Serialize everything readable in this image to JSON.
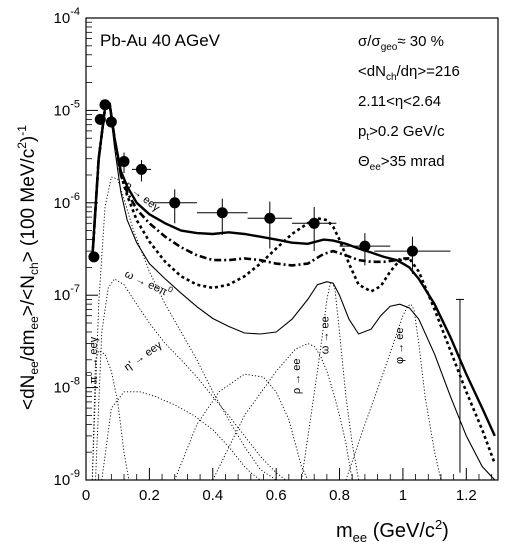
{
  "chart_data": {
    "type": "line",
    "title": "",
    "header_text": "Pb-Au 40 AGeV",
    "info_lines": [
      {
        "base": "σ/σ",
        "sub": "geo",
        "rest": "≈ 30 %"
      },
      {
        "base": "<dN",
        "sub": "ch",
        "rest": "/dη>=216"
      },
      {
        "base": "2.11<η<2.64",
        "sub": "",
        "rest": ""
      },
      {
        "base": "p",
        "sub": "t",
        "rest": ">0.2 GeV/c"
      },
      {
        "base": "Θ",
        "sub": "ee",
        "rest": ">35 mrad"
      }
    ],
    "xlabel": {
      "base": "m",
      "sub": "ee",
      "rest": " (GeV/c",
      "sup": "2",
      "tail": ")"
    },
    "ylabel": "<dN_ee/dm_ee>/<N_ch> (100 MeV/c^2)^-1",
    "xlim": [
      0,
      1.3
    ],
    "ylim": [
      1e-09,
      0.0001
    ],
    "yscale": "log",
    "x_ticks": [
      0,
      0.2,
      0.4,
      0.6,
      0.8,
      1,
      1.2
    ],
    "x_tick_labels": [
      "0",
      "0.2",
      "0.4",
      "0.6",
      "0.8",
      "1",
      "1.2"
    ],
    "y_ticks": [
      1e-09,
      1e-08,
      1e-07,
      1e-06,
      1e-05,
      0.0001
    ],
    "y_tick_labels": [
      {
        "base": "10",
        "exp": "-9"
      },
      {
        "base": "10",
        "exp": "-8"
      },
      {
        "base": "10",
        "exp": "-7"
      },
      {
        "base": "10",
        "exp": "-6"
      },
      {
        "base": "10",
        "exp": "-5"
      },
      {
        "base": "10",
        "exp": "-4"
      }
    ],
    "data_points": [
      {
        "x": 0.025,
        "y": 2.6e-07,
        "xerr": 0.0,
        "yerr_lo": 3e-08,
        "yerr_hi": 3e-08
      },
      {
        "x": 0.045,
        "y": 8e-06,
        "xerr": 0.0,
        "yerr_lo": 1e-06,
        "yerr_hi": 1e-06
      },
      {
        "x": 0.06,
        "y": 1.15e-05,
        "xerr": 0.0,
        "yerr_lo": 1e-06,
        "yerr_hi": 1e-06
      },
      {
        "x": 0.08,
        "y": 7.5e-06,
        "xerr": 0.0,
        "yerr_lo": 1e-06,
        "yerr_hi": 1e-06
      },
      {
        "x": 0.12,
        "y": 2.8e-06,
        "xerr": 0.0,
        "yerr_lo": 7e-07,
        "yerr_hi": 7e-07
      },
      {
        "x": 0.175,
        "y": 2.3e-06,
        "xerr": 0.03,
        "yerr_lo": 6e-07,
        "yerr_hi": 6e-07
      },
      {
        "x": 0.28,
        "y": 1e-06,
        "xerr": 0.07,
        "yerr_lo": 4e-07,
        "yerr_hi": 4e-07
      },
      {
        "x": 0.43,
        "y": 7.8e-07,
        "xerr": 0.08,
        "yerr_lo": 3.3e-07,
        "yerr_hi": 3.3e-07
      },
      {
        "x": 0.58,
        "y": 6.8e-07,
        "xerr": 0.07,
        "yerr_lo": 3.6e-07,
        "yerr_hi": 3.5e-07
      },
      {
        "x": 0.72,
        "y": 6e-07,
        "xerr": 0.07,
        "yerr_lo": 3e-07,
        "yerr_hi": 3e-07
      },
      {
        "x": 0.88,
        "y": 3.4e-07,
        "xerr": 0.08,
        "yerr_lo": 1.3e-07,
        "yerr_hi": 1.3e-07
      },
      {
        "x": 1.03,
        "y": 3e-07,
        "xerr": 0.12,
        "yerr_lo": 1.3e-07,
        "yerr_hi": 1.3e-07
      }
    ],
    "upper_error_bar": {
      "x": 1.18,
      "y_lo": 1.2e-09,
      "y_hi": 9e-08
    },
    "series": [
      {
        "style": "solid-thick",
        "x": [
          0.02,
          0.04,
          0.06,
          0.075,
          0.09,
          0.11,
          0.13,
          0.16,
          0.2,
          0.25,
          0.3,
          0.35,
          0.4,
          0.45,
          0.5,
          0.55,
          0.6,
          0.65,
          0.7,
          0.75,
          0.78,
          0.82,
          0.86,
          0.9,
          0.94,
          0.98,
          1.0,
          1.02,
          1.05,
          1.1,
          1.15,
          1.2,
          1.25,
          1.29
        ],
        "y": [
          2.5e-07,
          3e-06,
          1.05e-05,
          1.15e-05,
          5e-06,
          2.2e-06,
          1.5e-06,
          1e-06,
          7.5e-07,
          6e-07,
          5e-07,
          4.7e-07,
          4.6e-07,
          4.8e-07,
          4.6e-07,
          4.3e-07,
          4e-07,
          3.7e-07,
          3.6e-07,
          4e-07,
          3.9e-07,
          3.6e-07,
          3.2e-07,
          2.9e-07,
          2.6e-07,
          2.4e-07,
          2.2e-07,
          2e-07,
          1.5e-07,
          8e-08,
          3.5e-08,
          1.4e-08,
          6e-09,
          3e-09
        ]
      },
      {
        "style": "dash-dot",
        "x": [
          0.02,
          0.04,
          0.06,
          0.075,
          0.09,
          0.11,
          0.13,
          0.16,
          0.2,
          0.25,
          0.3,
          0.35,
          0.4,
          0.45,
          0.5,
          0.55,
          0.6,
          0.65,
          0.7,
          0.75,
          0.78,
          0.82,
          0.86,
          0.9,
          0.94,
          0.98,
          1.0,
          1.02
        ],
        "y": [
          2.5e-07,
          3e-06,
          1.05e-05,
          1.15e-05,
          5e-06,
          2e-06,
          1.3e-06,
          8.5e-07,
          6e-07,
          4.3e-07,
          3.3e-07,
          2.7e-07,
          2.4e-07,
          2.4e-07,
          2.5e-07,
          2.4e-07,
          2.2e-07,
          2.1e-07,
          2.2e-07,
          2.8e-07,
          3e-07,
          2.7e-07,
          2.4e-07,
          2.3e-07,
          2.3e-07,
          2.4e-07,
          2.5e-07,
          2.5e-07
        ]
      },
      {
        "style": "dotted-thick",
        "x": [
          0.02,
          0.04,
          0.06,
          0.075,
          0.09,
          0.11,
          0.13,
          0.16,
          0.2,
          0.25,
          0.3,
          0.35,
          0.4,
          0.45,
          0.5,
          0.55,
          0.6,
          0.65,
          0.7,
          0.73,
          0.76,
          0.78,
          0.8,
          0.83,
          0.86,
          0.9,
          0.93,
          0.96,
          0.99,
          1.02,
          1.05,
          1.1,
          1.15,
          1.2,
          1.25,
          1.29
        ],
        "y": [
          2.5e-07,
          3e-06,
          1.05e-05,
          1.15e-05,
          5e-06,
          2e-06,
          1.2e-06,
          6.5e-07,
          3.8e-07,
          2.3e-07,
          1.6e-07,
          1.3e-07,
          1.2e-07,
          1.3e-07,
          1.6e-07,
          2.2e-07,
          3.2e-07,
          4.6e-07,
          6e-07,
          6.8e-07,
          6.5e-07,
          5.5e-07,
          4e-07,
          2.2e-07,
          1.3e-07,
          1.1e-07,
          1.25e-07,
          1.8e-07,
          2.4e-07,
          2.5e-07,
          1.8e-07,
          7e-08,
          2.5e-08,
          9e-09,
          3.5e-09,
          1.5e-09
        ]
      },
      {
        "style": "solid-thin",
        "x": [
          0.02,
          0.04,
          0.06,
          0.075,
          0.09,
          0.11,
          0.13,
          0.16,
          0.2,
          0.25,
          0.3,
          0.35,
          0.4,
          0.45,
          0.5,
          0.55,
          0.6,
          0.65,
          0.7,
          0.73,
          0.76,
          0.78,
          0.8,
          0.83,
          0.86,
          0.9,
          0.93,
          0.96,
          0.99,
          1.02,
          1.05,
          1.1,
          1.15,
          1.2,
          1.25,
          1.29
        ],
        "y": [
          2.5e-07,
          3e-06,
          1.05e-05,
          1.15e-05,
          4e-06,
          1.3e-06,
          6.5e-07,
          3.7e-07,
          2.2e-07,
          1.5e-07,
          1.05e-07,
          7.5e-08,
          5.6e-08,
          4.6e-08,
          3.9e-08,
          3.8e-08,
          4e-08,
          5.5e-08,
          9e-08,
          1.3e-07,
          1.4e-07,
          1.35e-07,
          1e-07,
          5.5e-08,
          3.8e-08,
          4.3e-08,
          6e-08,
          7.6e-08,
          8e-08,
          7.3e-08,
          5.5e-08,
          2.3e-08,
          8e-09,
          3e-09,
          1.4e-09,
          1e-09
        ]
      },
      {
        "style": "dotted-thin",
        "x": [
          0.02,
          0.04,
          0.06,
          0.08,
          0.1,
          0.12,
          0.15,
          0.2,
          0.25,
          0.3,
          0.35,
          0.4,
          0.45,
          0.5,
          0.55,
          0.6
        ],
        "y": [
          1e-09,
          8e-08,
          9e-07,
          1.9e-06,
          1.8e-06,
          1.1e-06,
          5e-07,
          1.8e-07,
          8e-08,
          4e-08,
          2e-08,
          9e-09,
          4.5e-09,
          2.3e-09,
          1.3e-09,
          1e-09
        ]
      },
      {
        "style": "dotted-thin",
        "x": [
          0.03,
          0.05,
          0.07,
          0.09,
          0.12,
          0.16,
          0.2,
          0.25,
          0.3,
          0.35,
          0.4,
          0.45,
          0.5,
          0.55,
          0.6,
          0.63
        ],
        "y": [
          1e-09,
          4e-08,
          1.2e-07,
          1.5e-07,
          1.3e-07,
          8e-08,
          5e-08,
          3e-08,
          2e-08,
          1.3e-08,
          8e-09,
          5e-09,
          3e-09,
          1.8e-09,
          1.2e-09,
          1e-09
        ]
      },
      {
        "style": "dotted-thin",
        "x": [
          0.02,
          0.03,
          0.04,
          0.06,
          0.08,
          0.1,
          0.12,
          0.135
        ],
        "y": [
          1e-09,
          2e-08,
          2.5e-08,
          2.3e-08,
          1.5e-08,
          7e-09,
          2e-09,
          1e-09
        ]
      },
      {
        "style": "dotted-thin",
        "x": [
          0.05,
          0.08,
          0.12,
          0.17,
          0.22,
          0.28,
          0.34,
          0.4,
          0.45,
          0.5,
          0.52,
          0.55
        ],
        "y": [
          1e-09,
          6e-09,
          9e-09,
          9e-09,
          8e-09,
          6.5e-09,
          5e-09,
          3.5e-09,
          2.3e-09,
          1.4e-09,
          1.2e-09,
          1e-09
        ]
      },
      {
        "style": "dotted-thin",
        "x": [
          0.28,
          0.35,
          0.42,
          0.5,
          0.56,
          0.6,
          0.64,
          0.66,
          0.68,
          0.7
        ],
        "y": [
          1e-09,
          4e-09,
          9e-09,
          1.4e-08,
          1.3e-08,
          9e-09,
          4.5e-09,
          2.5e-09,
          1.4e-09,
          1e-09
        ]
      },
      {
        "style": "dotted-thin",
        "x": [
          0.4,
          0.5,
          0.6,
          0.66,
          0.7,
          0.72,
          0.74,
          0.76,
          0.78,
          0.8,
          0.82,
          0.84
        ],
        "y": [
          1e-09,
          5e-09,
          1.5e-08,
          2.6e-08,
          3e-08,
          2.8e-08,
          2.2e-08,
          1.5e-08,
          9e-09,
          5e-09,
          2.5e-09,
          1e-09
        ]
      },
      {
        "style": "dotted-thin",
        "x": [
          0.68,
          0.71,
          0.73,
          0.745,
          0.76,
          0.77,
          0.775,
          0.785,
          0.8,
          0.82,
          0.84,
          0.86
        ],
        "y": [
          1e-09,
          5e-09,
          1.5e-08,
          3.5e-08,
          9e-08,
          1.3e-07,
          1.4e-07,
          1.2e-07,
          4e-08,
          8e-09,
          2.5e-09,
          1e-09
        ]
      },
      {
        "style": "dotted-thin",
        "x": [
          0.82,
          0.88,
          0.93,
          0.97,
          1.0,
          1.015,
          1.025,
          1.035,
          1.05,
          1.07,
          1.1,
          1.12
        ],
        "y": [
          1e-09,
          4e-09,
          1.2e-08,
          3e-08,
          6e-08,
          7.6e-08,
          8e-08,
          7e-08,
          3e-08,
          8e-09,
          2e-09,
          1e-09
        ]
      }
    ],
    "annotations": [
      {
        "text": "η → eeγ",
        "x": 0.12,
        "y": 1.5e-06,
        "rotate": 38
      },
      {
        "text": "ω → eeπ",
        "sup": "0",
        "x": 0.12,
        "y": 1.6e-07,
        "rotate": 25
      },
      {
        "text": "π",
        "sup": "0",
        "rest": " → eeγ",
        "x": 0.035,
        "y": 1.1e-08,
        "rotate": -90
      },
      {
        "text": "η' → eeγ",
        "x": 0.13,
        "y": 1.5e-08,
        "rotate": -35
      },
      {
        "text": "ρ → ee",
        "x": 0.675,
        "y": 8.5e-09,
        "rotate": -90
      },
      {
        "text": "ω → ee",
        "x": 0.765,
        "y": 2.3e-08,
        "rotate": -90
      },
      {
        "text": "φ → ee",
        "x": 1.0,
        "y": 1.8e-08,
        "rotate": -90
      }
    ]
  }
}
